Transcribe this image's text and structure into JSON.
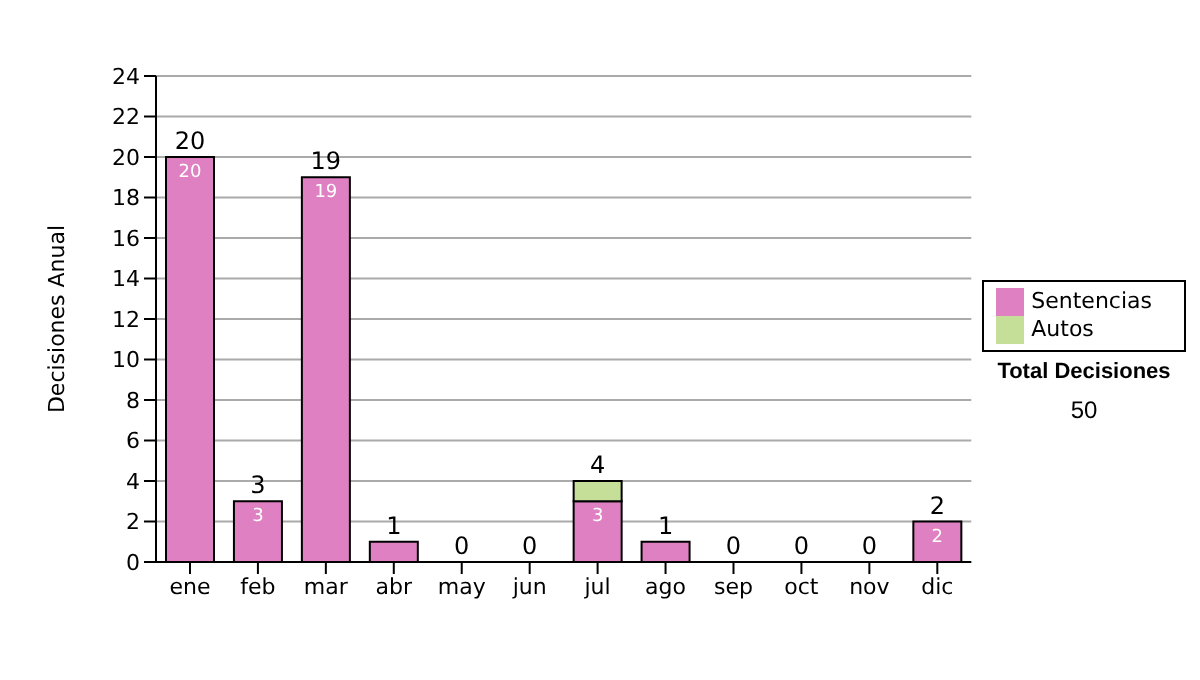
{
  "chart_data": {
    "type": "bar",
    "stacked": true,
    "categories": [
      "ene",
      "feb",
      "mar",
      "abr",
      "may",
      "jun",
      "jul",
      "ago",
      "sep",
      "oct",
      "nov",
      "dic"
    ],
    "series": [
      {
        "name": "Sentencias",
        "color": "#df80c2",
        "values": [
          20,
          3,
          19,
          1,
          0,
          0,
          3,
          1,
          0,
          0,
          0,
          2
        ],
        "value_labels": [
          "20",
          "3",
          "19",
          null,
          null,
          null,
          "3",
          null,
          null,
          null,
          null,
          "2"
        ]
      },
      {
        "name": "Autos",
        "color": "#c6df98",
        "values": [
          0,
          0,
          0,
          0,
          0,
          0,
          1,
          0,
          0,
          0,
          0,
          0
        ]
      }
    ],
    "totals": [
      "20",
      "3",
      "19",
      "1",
      "0",
      "0",
      "4",
      "1",
      "0",
      "0",
      "0",
      "2"
    ],
    "ylabel": "Decisiones Anual",
    "ylim": [
      0,
      24
    ],
    "yticks": [
      0,
      2,
      4,
      6,
      8,
      10,
      12,
      14,
      16,
      18,
      20,
      22,
      24
    ],
    "grid": "y",
    "legend": "right",
    "annotations": [
      "Total Decisiones",
      "50"
    ]
  }
}
